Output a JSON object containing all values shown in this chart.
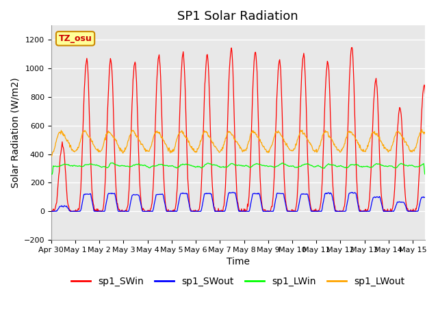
{
  "title": "SP1 Solar Radiation",
  "xlabel": "Time",
  "ylabel": "Solar Radiation (W/m2)",
  "ylim": [
    -200,
    1300
  ],
  "xlim_days": [
    0,
    15.5
  ],
  "x_tick_labels": [
    "Apr 30",
    "May 1",
    "May 2",
    "May 3",
    "May 4",
    "May 5",
    "May 6",
    "May 7",
    "May 8",
    "May 9",
    "May 10",
    "May 11",
    "May 12",
    "May 13",
    "May 14",
    "May 15"
  ],
  "x_tick_positions": [
    0,
    1,
    2,
    3,
    4,
    5,
    6,
    7,
    8,
    9,
    10,
    11,
    12,
    13,
    14,
    15
  ],
  "colors": {
    "SWin": "#FF0000",
    "SWout": "#0000FF",
    "LWin": "#00FF00",
    "LWout": "#FFA500"
  },
  "legend_labels": [
    "sp1_SWin",
    "sp1_SWout",
    "sp1_LWin",
    "sp1_LWout"
  ],
  "tz_label": "TZ_osu",
  "background_color": "#FFFFFF",
  "plot_bg_color": "#E8E8E8",
  "grid_color": "#FFFFFF",
  "title_fontsize": 13,
  "axis_label_fontsize": 10,
  "tick_fontsize": 8,
  "legend_fontsize": 10,
  "SWin_peaks": [
    0.42,
    0.965,
    0.97,
    0.94,
    0.985,
    1.0,
    0.99,
    1.03,
    1.01,
    0.96,
    1.0,
    0.95,
    1.045,
    0.84,
    0.66,
    0.8
  ],
  "SWout_peaks": [
    0.035,
    0.12,
    0.125,
    0.115,
    0.12,
    0.125,
    0.125,
    0.13,
    0.125,
    0.125,
    0.12,
    0.125,
    0.13,
    0.1,
    0.065,
    0.1
  ],
  "LWin_base": 315,
  "LWout_night": 350,
  "LWout_day_add": 170
}
